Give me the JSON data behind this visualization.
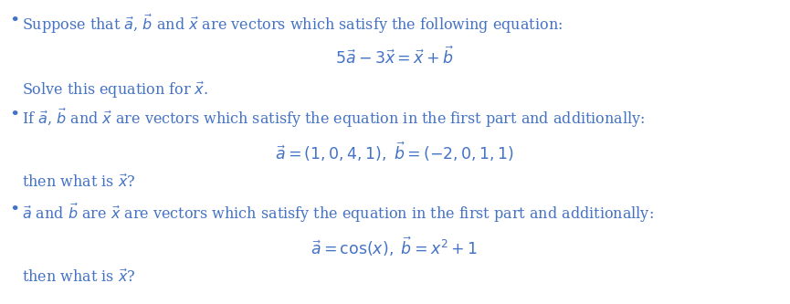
{
  "background_color": "#ffffff",
  "text_color": "#4472c4",
  "figsize": [
    8.65,
    3.33
  ],
  "dpi": 100,
  "bullet1_text": "Suppose that $\\vec{a}$, $\\vec{b}$ and $\\vec{x}$ are vectors which satisfy the following equation:",
  "bullet1_eq": "$5\\vec{a} - 3\\vec{x} = \\vec{x} + \\vec{b}$",
  "bullet1_sub": "Solve this equation for $\\vec{x}$.",
  "bullet2_text": "If $\\vec{a}$, $\\vec{b}$ and $\\vec{x}$ are vectors which satisfy the equation in the first part and additionally:",
  "bullet2_eq": "$\\vec{a} = (1, 0, 4, 1),\\; \\vec{b} = (-2, 0, 1, 1)$",
  "bullet2_sub": "then what is $\\vec{x}$?",
  "bullet3_text": "$\\vec{a}$ and $\\vec{b}$ are $\\vec{x}$ are vectors which satisfy the equation in the first part and additionally:",
  "bullet3_eq": "$\\vec{a} = \\cos(x),\\; \\vec{b} = x^2 + 1$",
  "bullet3_sub": "then what is $\\vec{x}$?",
  "font_size_text": 11.5,
  "font_size_eq": 12.5,
  "font_size_bullet": 14
}
